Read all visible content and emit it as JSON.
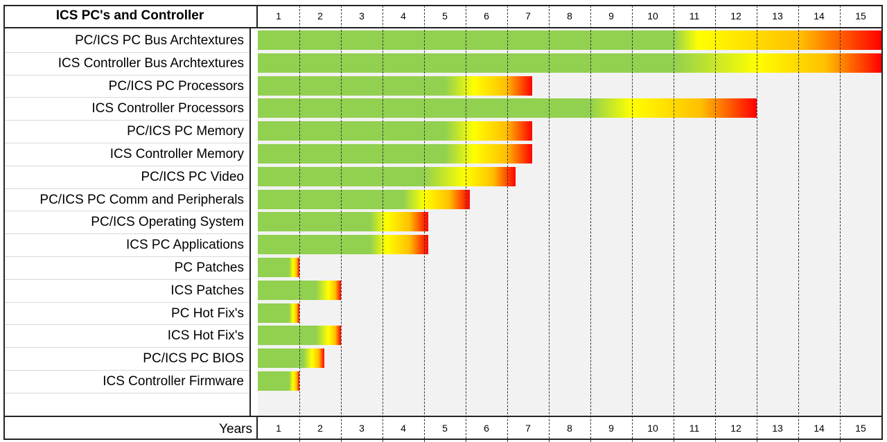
{
  "chart_data": {
    "type": "bar",
    "orientation": "horizontal",
    "title": "ICS PC's and Controller",
    "xlabel": "Years",
    "xlim": [
      0,
      15
    ],
    "x_ticks": [
      "1",
      "2",
      "3",
      "4",
      "5",
      "6",
      "7",
      "8",
      "9",
      "10",
      "11",
      "12",
      "13",
      "14",
      "15"
    ],
    "grid": "vertical dashed",
    "colors": {
      "green": "#92d050",
      "yellow": "#ffff00",
      "orange": "#ffc000",
      "red": "#ff0000"
    },
    "categories": [
      "PC/ICS PC  Bus Archtextures",
      "ICS Controller Bus Archtextures",
      "PC/ICS PC Processors",
      "ICS Controller Processors",
      "PC/ICS PC  Memory",
      "ICS Controller  Memory",
      "PC/ICS PC  Video",
      "PC/ICS PC Comm and Peripherals",
      "PC/ICS  Operating System",
      "ICS PC Applications",
      "PC Patches",
      "ICS Patches",
      "PC Hot Fix's",
      "ICS Hot Fix's",
      "PC/ICS PC BIOS",
      "ICS Controller Firmware"
    ],
    "values": [
      15,
      15,
      6.6,
      12,
      6.6,
      6.6,
      6.2,
      5.1,
      4.1,
      4.1,
      1.0,
      2.0,
      1.0,
      2.0,
      1.6,
      1.0
    ],
    "green_until": [
      10,
      10,
      4.5,
      8,
      4.5,
      4.5,
      4.0,
      3.5,
      2.7,
      2.7,
      0.75,
      1.4,
      0.75,
      1.4,
      1.1,
      0.75
    ],
    "yellow_at": [
      10.6,
      12,
      5.2,
      9,
      5.2,
      5.2,
      5.0,
      4.0,
      3.1,
      3.1,
      0.85,
      1.7,
      0.85,
      1.7,
      1.3,
      0.85
    ]
  }
}
